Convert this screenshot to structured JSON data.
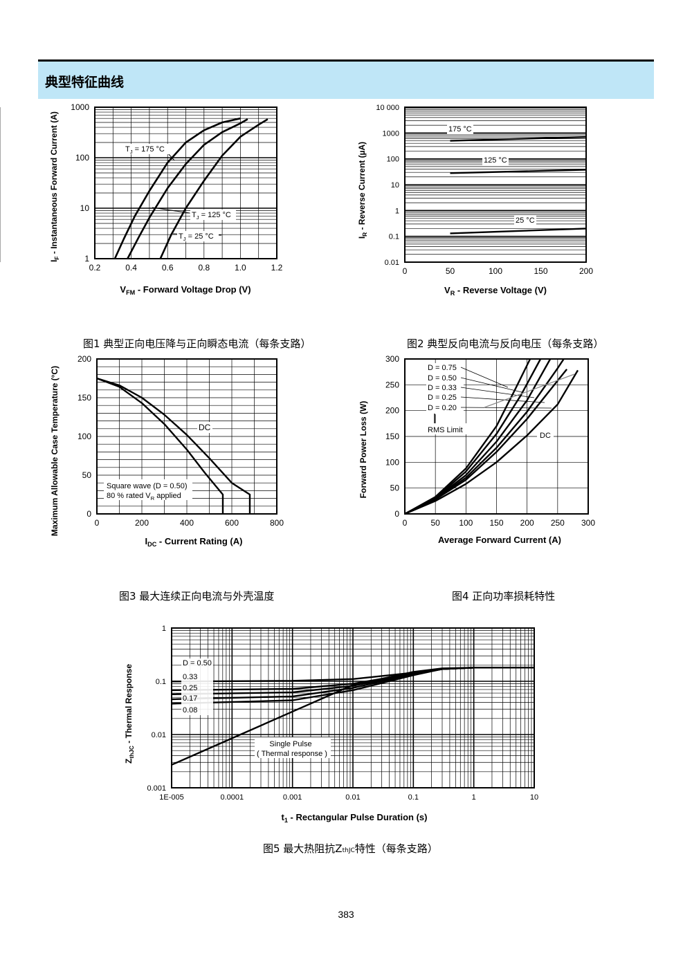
{
  "header": {
    "title": "典型特征曲线"
  },
  "page_number": "383",
  "captions": {
    "fig1": "图1  典型正向电压降与正向瞬态电流（每条支路）",
    "fig2": "图2  典型反向电流与反向电压（每条支路）",
    "fig3": "图3  最大连续正向电流与外壳温度",
    "fig4": "图4  正向功率损耗特性",
    "fig5_main": "图5  最大热阻抗Z",
    "fig5_sub": "thJC",
    "fig5_tail": "特性（每条支路）"
  },
  "chart_data": [
    {
      "id": "fig1",
      "type": "line",
      "xlabel": "V",
      "xlabel_sub": "FM",
      "xlabel_rest": " - Forward Voltage Drop (V)",
      "ylabel": "I",
      "ylabel_sub": "F",
      "ylabel_rest": " - Instantaneous Forward Current (A)",
      "xlim": [
        0.2,
        1.2
      ],
      "ylim": [
        1,
        1000
      ],
      "yscale": "log",
      "xticks": [
        "0.2",
        "0.4",
        "0.6",
        "0.8",
        "1.0",
        "1.2"
      ],
      "yticks": [
        "1",
        "10",
        "100",
        "1000"
      ],
      "series": [
        {
          "name": "T",
          "name_sub": "J",
          "name_rest": " = 175 °C",
          "x": [
            0.31,
            0.36,
            0.42,
            0.5,
            0.6,
            0.7,
            0.8,
            0.9,
            1.0
          ],
          "y": [
            1,
            2.5,
            7,
            22,
            80,
            200,
            350,
            500,
            600
          ]
        },
        {
          "name": "T",
          "name_sub": "J",
          "name_rest": " = 125 °C",
          "x": [
            0.38,
            0.44,
            0.5,
            0.6,
            0.7,
            0.8,
            0.9,
            1.0,
            1.04
          ],
          "y": [
            1,
            2.6,
            6.5,
            25,
            75,
            180,
            320,
            480,
            580
          ]
        },
        {
          "name": "T",
          "name_sub": "J",
          "name_rest": " = 25 °C",
          "x": [
            0.56,
            0.62,
            0.7,
            0.8,
            0.9,
            1.0,
            1.1,
            1.15
          ],
          "y": [
            1,
            3,
            10,
            35,
            110,
            260,
            450,
            580
          ]
        }
      ]
    },
    {
      "id": "fig2",
      "type": "line",
      "xlabel": "V",
      "xlabel_sub": "R",
      "xlabel_rest": " - Reverse Voltage (V)",
      "ylabel": "I",
      "ylabel_sub": "R",
      "ylabel_rest": " - Reverse Current (µA)",
      "xlim": [
        0,
        200
      ],
      "ylim": [
        0.01,
        10000
      ],
      "yscale": "log",
      "xticks": [
        "0",
        "50",
        "100",
        "150",
        "200"
      ],
      "yticks": [
        "0.01",
        "0.1",
        "1",
        "10",
        "100",
        "1000",
        "10 000"
      ],
      "series": [
        {
          "name": "175 °C",
          "x": [
            50,
            200
          ],
          "y": [
            500,
            700
          ]
        },
        {
          "name": "125 °C",
          "x": [
            50,
            200
          ],
          "y": [
            28,
            38
          ]
        },
        {
          "name": "25 °C",
          "x": [
            50,
            200
          ],
          "y": [
            0.13,
            0.2
          ]
        }
      ]
    },
    {
      "id": "fig3",
      "type": "line",
      "xlabel": "I",
      "xlabel_sub": "DC",
      "xlabel_rest": " - Current Rating (A)",
      "ylabel": "Maximum Allowable Case Temperature (°C)",
      "xlim": [
        0,
        800
      ],
      "ylim": [
        0,
        200
      ],
      "xticks": [
        "0",
        "200",
        "400",
        "600",
        "800"
      ],
      "yticks": [
        "0",
        "50",
        "100",
        "150",
        "200"
      ],
      "annotations": {
        "square_wave": "Square wave (D = 0.50)",
        "rated_pre": "80 % rated V",
        "rated_sub": "R",
        "rated_post": " applied"
      },
      "series": [
        {
          "name": "DC",
          "x": [
            0,
            100,
            200,
            300,
            400,
            500,
            600,
            680,
            680
          ],
          "y": [
            175,
            166,
            150,
            128,
            102,
            72,
            40,
            25,
            0
          ]
        },
        {
          "name": "Square wave (D = 0.50)",
          "x": [
            0,
            100,
            200,
            300,
            400,
            480,
            560,
            560
          ],
          "y": [
            175,
            164,
            143,
            116,
            83,
            53,
            25,
            0
          ]
        }
      ]
    },
    {
      "id": "fig4",
      "type": "line",
      "xlabel": "Average Forward Current (A)",
      "ylabel": "Forward Power Loss (W)",
      "xlim": [
        0,
        300
      ],
      "ylim": [
        0,
        300
      ],
      "xticks": [
        "0",
        "50",
        "100",
        "150",
        "200",
        "250",
        "300"
      ],
      "yticks": [
        "0",
        "50",
        "100",
        "150",
        "200",
        "250",
        "300"
      ],
      "rms_label": "RMS Limit",
      "series": [
        {
          "name": "D = 0.75",
          "x": [
            0,
            50,
            100,
            150,
            180,
            205
          ],
          "y": [
            0,
            33,
            88,
            170,
            240,
            300
          ]
        },
        {
          "name": "D = 0.50",
          "x": [
            0,
            50,
            100,
            150,
            190,
            222
          ],
          "y": [
            0,
            31,
            82,
            155,
            230,
            300
          ]
        },
        {
          "name": "D = 0.33",
          "x": [
            0,
            50,
            100,
            150,
            200,
            238
          ],
          "y": [
            0,
            30,
            75,
            140,
            220,
            300
          ]
        },
        {
          "name": "D = 0.25",
          "x": [
            0,
            50,
            100,
            150,
            200,
            250,
            260
          ],
          "y": [
            0,
            29,
            70,
            128,
            198,
            282,
            300
          ]
        },
        {
          "name": "D = 0.20",
          "x": [
            0,
            50,
            100,
            150,
            200,
            250,
            265
          ],
          "y": [
            0,
            28,
            66,
            120,
            184,
            258,
            280
          ]
        },
        {
          "name": "DC",
          "x": [
            0,
            50,
            100,
            150,
            200,
            250,
            283
          ],
          "y": [
            0,
            25,
            58,
            100,
            152,
            212,
            278
          ]
        }
      ]
    },
    {
      "id": "fig5",
      "type": "line",
      "xlabel": "t",
      "xlabel_sub": "1",
      "xlabel_rest": " - Rectangular Pulse Duration (s)",
      "ylabel": "Z",
      "ylabel_sub": "thJC",
      "ylabel_rest": " - Thermal Response",
      "xlim": [
        1e-05,
        10
      ],
      "ylim": [
        0.001,
        1
      ],
      "xscale": "log",
      "yscale": "log",
      "xticks": [
        "1E-005",
        "0.0001",
        "0.001",
        "0.01",
        "0.1",
        "1",
        "10"
      ],
      "yticks": [
        "0.001",
        "0.01",
        "0.1",
        "1"
      ],
      "single_pulse_label": "Single Pulse",
      "single_pulse_sub": "( Thermal response )",
      "series": [
        {
          "name": "D = 0.50",
          "x": [
            1e-05,
            0.001,
            0.01,
            0.1,
            0.3,
            1,
            10
          ],
          "y": [
            0.099,
            0.102,
            0.11,
            0.145,
            0.17,
            0.18,
            0.18
          ]
        },
        {
          "name": "0.33",
          "x": [
            1e-05,
            0.001,
            0.01,
            0.1,
            0.3,
            1,
            10
          ],
          "y": [
            0.068,
            0.072,
            0.09,
            0.14,
            0.17,
            0.18,
            0.18
          ]
        },
        {
          "name": "0.25",
          "x": [
            1e-05,
            0.001,
            0.01,
            0.1,
            0.3,
            1,
            10
          ],
          "y": [
            0.057,
            0.062,
            0.082,
            0.137,
            0.17,
            0.18,
            0.18
          ]
        },
        {
          "name": "0.17",
          "x": [
            1e-05,
            0.001,
            0.01,
            0.1,
            0.3,
            1,
            10
          ],
          "y": [
            0.046,
            0.052,
            0.075,
            0.135,
            0.17,
            0.18,
            0.18
          ]
        },
        {
          "name": "0.08",
          "x": [
            1e-05,
            0.001,
            0.01,
            0.1,
            0.3,
            1,
            10
          ],
          "y": [
            0.038,
            0.044,
            0.068,
            0.13,
            0.17,
            0.18,
            0.18
          ]
        },
        {
          "name": "Single Pulse",
          "x": [
            1e-05,
            0.0001,
            0.001,
            0.01,
            0.1,
            0.3,
            1,
            10
          ],
          "y": [
            0.0027,
            0.0085,
            0.027,
            0.085,
            0.15,
            0.175,
            0.18,
            0.18
          ]
        }
      ]
    }
  ]
}
